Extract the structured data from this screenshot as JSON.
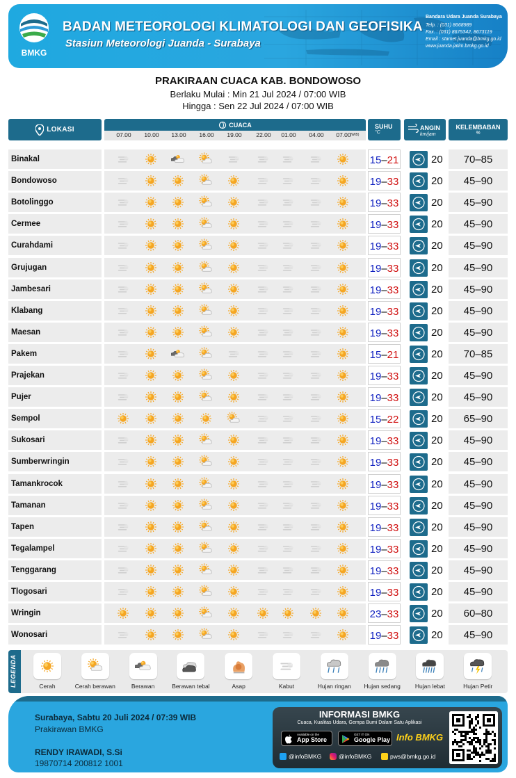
{
  "header": {
    "org_name": "BADAN METEOROLOGI KLIMATOLOGI DAN GEOFISIKA",
    "station_name": "Stasiun Meteorologi Juanda - Surabaya",
    "logo_text": "BMKG",
    "contact_title": "Bandara Udara Juanda  Surabaya",
    "contact_lines": [
      "Telp.  : (031) 8668989",
      "Fax.   : (031) 8675342, 8673119",
      "Email : stamet.juanda@bmkg.go.id",
      "www.juanda.jatim.bmkg.go.id"
    ]
  },
  "title": "PRAKIRAAN CUACA KAB. BONDOWOSO",
  "validity_from": "Berlaku Mulai : Min 21 Jul 2024 / 07:00 WIB",
  "validity_to": "Hingga : Sen 22 Jul 2024 / 07:00 WIB",
  "columns": {
    "lokasi": "LOKASI",
    "cuaca": "CUACA",
    "suhu": "SUHU",
    "suhu_unit": "°C",
    "angin": "ANGIN",
    "angin_unit": "km/jam",
    "kelembaban": "KELEMBABAN",
    "kelembaban_unit": "%",
    "times": [
      "07.00",
      "10.00",
      "13.00",
      "16.00",
      "19.00",
      "22.00",
      "01.00",
      "04.00",
      "07.00"
    ],
    "last_time_suffix": "(WIB)"
  },
  "rows": [
    {
      "name": "Binakal",
      "wx": [
        "kabut",
        "cerah",
        "berawan",
        "cerah-berawan",
        "kabut",
        "kabut",
        "kabut",
        "kabut",
        "cerah"
      ],
      "tmin": "15",
      "tmax": "21",
      "wind": "20",
      "hum": "70–85"
    },
    {
      "name": "Bondowoso",
      "wx": [
        "kabut",
        "cerah",
        "cerah",
        "cerah-berawan",
        "cerah",
        "kabut",
        "kabut",
        "kabut",
        "cerah"
      ],
      "tmin": "19",
      "tmax": "33",
      "wind": "20",
      "hum": "45–90"
    },
    {
      "name": "Botolinggo",
      "wx": [
        "kabut",
        "cerah",
        "cerah",
        "cerah-berawan",
        "cerah",
        "kabut",
        "kabut",
        "kabut",
        "cerah"
      ],
      "tmin": "19",
      "tmax": "33",
      "wind": "20",
      "hum": "45–90"
    },
    {
      "name": "Cermee",
      "wx": [
        "kabut",
        "cerah",
        "cerah",
        "cerah-berawan",
        "cerah",
        "kabut",
        "kabut",
        "kabut",
        "cerah"
      ],
      "tmin": "19",
      "tmax": "33",
      "wind": "20",
      "hum": "45–90"
    },
    {
      "name": "Curahdami",
      "wx": [
        "kabut",
        "cerah",
        "cerah",
        "cerah-berawan",
        "cerah",
        "kabut",
        "kabut",
        "kabut",
        "cerah"
      ],
      "tmin": "19",
      "tmax": "33",
      "wind": "20",
      "hum": "45–90"
    },
    {
      "name": "Grujugan",
      "wx": [
        "kabut",
        "cerah",
        "cerah",
        "cerah-berawan",
        "cerah",
        "kabut",
        "kabut",
        "kabut",
        "cerah"
      ],
      "tmin": "19",
      "tmax": "33",
      "wind": "20",
      "hum": "45–90"
    },
    {
      "name": "Jambesari",
      "wx": [
        "kabut",
        "cerah",
        "cerah",
        "cerah-berawan",
        "cerah",
        "kabut",
        "kabut",
        "kabut",
        "cerah"
      ],
      "tmin": "19",
      "tmax": "33",
      "wind": "20",
      "hum": "45–90"
    },
    {
      "name": "Klabang",
      "wx": [
        "kabut",
        "cerah",
        "cerah",
        "cerah-berawan",
        "cerah",
        "kabut",
        "kabut",
        "kabut",
        "cerah"
      ],
      "tmin": "19",
      "tmax": "33",
      "wind": "20",
      "hum": "45–90"
    },
    {
      "name": "Maesan",
      "wx": [
        "kabut",
        "cerah",
        "cerah",
        "cerah-berawan",
        "cerah",
        "kabut",
        "kabut",
        "kabut",
        "cerah"
      ],
      "tmin": "19",
      "tmax": "33",
      "wind": "20",
      "hum": "45–90"
    },
    {
      "name": "Pakem",
      "wx": [
        "kabut",
        "cerah",
        "berawan",
        "cerah-berawan",
        "kabut",
        "kabut",
        "kabut",
        "kabut",
        "cerah"
      ],
      "tmin": "15",
      "tmax": "21",
      "wind": "20",
      "hum": "70–85"
    },
    {
      "name": "Prajekan",
      "wx": [
        "kabut",
        "cerah",
        "cerah",
        "cerah-berawan",
        "cerah",
        "kabut",
        "kabut",
        "kabut",
        "cerah"
      ],
      "tmin": "19",
      "tmax": "33",
      "wind": "20",
      "hum": "45–90"
    },
    {
      "name": "Pujer",
      "wx": [
        "kabut",
        "cerah",
        "cerah",
        "cerah-berawan",
        "cerah",
        "kabut",
        "kabut",
        "kabut",
        "cerah"
      ],
      "tmin": "19",
      "tmax": "33",
      "wind": "20",
      "hum": "45–90"
    },
    {
      "name": "Sempol",
      "wx": [
        "cerah",
        "cerah",
        "cerah",
        "cerah",
        "cerah-berawan",
        "kabut",
        "kabut",
        "kabut",
        "cerah"
      ],
      "tmin": "15",
      "tmax": "22",
      "wind": "20",
      "hum": "65–90"
    },
    {
      "name": "Sukosari",
      "wx": [
        "kabut",
        "cerah",
        "cerah",
        "cerah-berawan",
        "cerah",
        "kabut",
        "kabut",
        "kabut",
        "cerah"
      ],
      "tmin": "19",
      "tmax": "33",
      "wind": "20",
      "hum": "45–90"
    },
    {
      "name": "Sumberwringin",
      "wx": [
        "kabut",
        "cerah",
        "cerah",
        "cerah-berawan",
        "cerah",
        "kabut",
        "kabut",
        "kabut",
        "cerah"
      ],
      "tmin": "19",
      "tmax": "33",
      "wind": "20",
      "hum": "45–90"
    },
    {
      "name": "Tamankrocok",
      "wx": [
        "kabut",
        "cerah",
        "cerah",
        "cerah-berawan",
        "cerah",
        "kabut",
        "kabut",
        "kabut",
        "cerah"
      ],
      "tmin": "19",
      "tmax": "33",
      "wind": "20",
      "hum": "45–90"
    },
    {
      "name": "Tamanan",
      "wx": [
        "kabut",
        "cerah",
        "cerah",
        "cerah-berawan",
        "cerah",
        "kabut",
        "kabut",
        "kabut",
        "cerah"
      ],
      "tmin": "19",
      "tmax": "33",
      "wind": "20",
      "hum": "45–90"
    },
    {
      "name": "Tapen",
      "wx": [
        "kabut",
        "cerah",
        "cerah",
        "cerah-berawan",
        "cerah",
        "kabut",
        "kabut",
        "kabut",
        "cerah"
      ],
      "tmin": "19",
      "tmax": "33",
      "wind": "20",
      "hum": "45–90"
    },
    {
      "name": "Tegalampel",
      "wx": [
        "kabut",
        "cerah",
        "cerah",
        "cerah-berawan",
        "cerah",
        "kabut",
        "kabut",
        "kabut",
        "cerah"
      ],
      "tmin": "19",
      "tmax": "33",
      "wind": "20",
      "hum": "45–90"
    },
    {
      "name": "Tenggarang",
      "wx": [
        "kabut",
        "cerah",
        "cerah",
        "cerah-berawan",
        "cerah",
        "kabut",
        "kabut",
        "kabut",
        "cerah"
      ],
      "tmin": "19",
      "tmax": "33",
      "wind": "20",
      "hum": "45–90"
    },
    {
      "name": "Tlogosari",
      "wx": [
        "kabut",
        "cerah",
        "cerah",
        "cerah-berawan",
        "cerah",
        "kabut",
        "kabut",
        "kabut",
        "cerah"
      ],
      "tmin": "19",
      "tmax": "33",
      "wind": "20",
      "hum": "45–90"
    },
    {
      "name": "Wringin",
      "wx": [
        "cerah",
        "cerah",
        "cerah",
        "cerah-berawan",
        "cerah",
        "cerah",
        "cerah",
        "cerah",
        "cerah"
      ],
      "tmin": "23",
      "tmax": "33",
      "wind": "20",
      "hum": "60–80"
    },
    {
      "name": "Wonosari",
      "wx": [
        "kabut",
        "cerah",
        "cerah",
        "cerah-berawan",
        "cerah",
        "kabut",
        "kabut",
        "kabut",
        "cerah"
      ],
      "tmin": "19",
      "tmax": "33",
      "wind": "20",
      "hum": "45–90"
    }
  ],
  "legend": {
    "label": "LEGENDA",
    "items": [
      {
        "label": "Cerah",
        "icon": "cerah"
      },
      {
        "label": "Cerah berawan",
        "icon": "cerah-berawan"
      },
      {
        "label": "Berawan",
        "icon": "berawan"
      },
      {
        "label": "Berawan tebal",
        "icon": "berawan-tebal"
      },
      {
        "label": "Asap",
        "icon": "asap"
      },
      {
        "label": "Kabut",
        "icon": "kabut"
      },
      {
        "label": "Hujan ringan",
        "icon": "hujan-ringan"
      },
      {
        "label": "Hujan sedang",
        "icon": "hujan-sedang"
      },
      {
        "label": "Hujan lebat",
        "icon": "hujan-lebat"
      },
      {
        "label": "Hujan Petir",
        "icon": "hujan-petir"
      }
    ]
  },
  "footer": {
    "sign_date": "Surabaya, Sabtu 20 Juli 2024 / 07:39 WIB",
    "sign_role": "Prakirawan BMKG",
    "sign_name": "RENDY IRAWADI, S.Si",
    "sign_nip": "19870714 200812 1001",
    "info_title": "INFORMASI BMKG",
    "info_sub": "Cuaca, Kualitas Udara, Gempa Bumi Dalam Satu Aplikasi",
    "appstore_small": "Available on the",
    "appstore_big": "App Store",
    "googleplay_small": "GET IT ON",
    "googleplay_big": "Google Play",
    "brand": "Info BMKG",
    "twitter": "@infoBMKG",
    "instagram": "@infoBMKG",
    "email": "pws@bmkg.go.id"
  },
  "colors": {
    "header_blue": "#2aa6df",
    "column_header": "#1d6b8c",
    "temp_min": "#1020c0",
    "temp_max": "#d01010",
    "sun": "#f5a623"
  }
}
